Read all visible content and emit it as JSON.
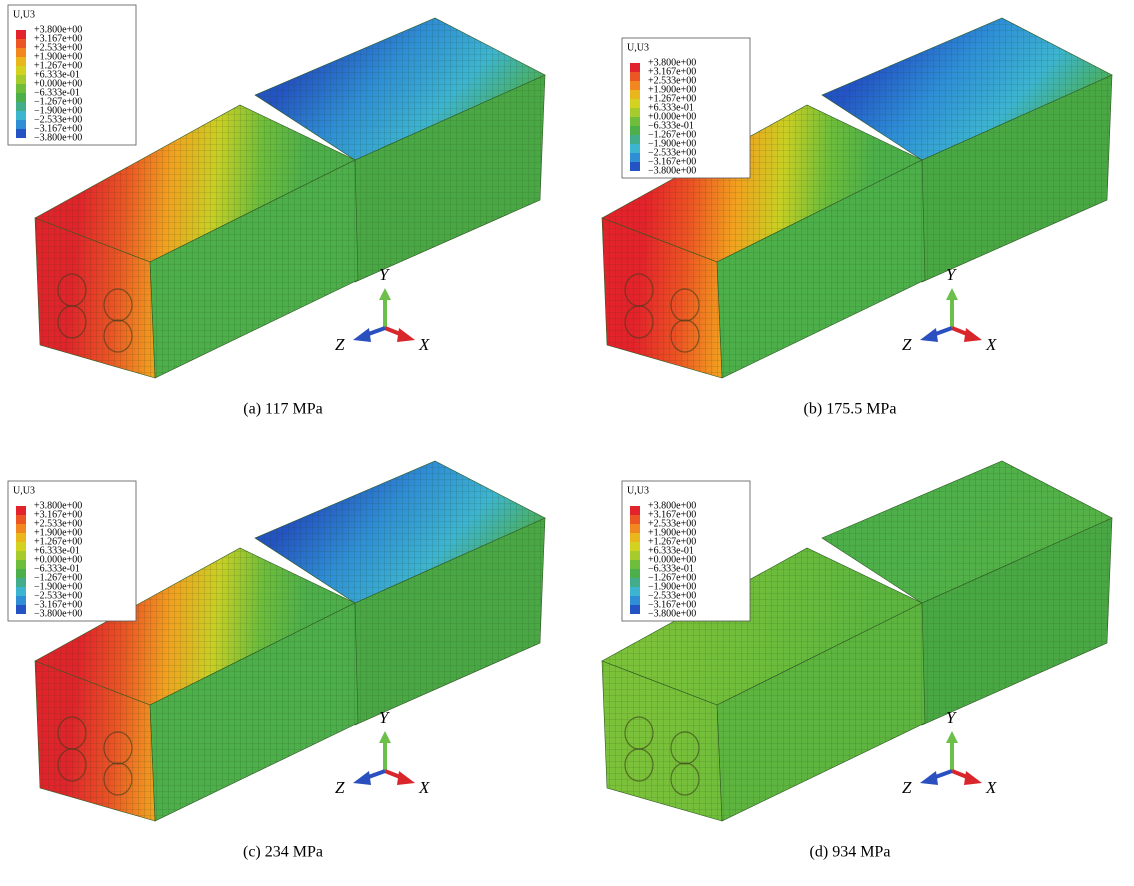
{
  "panels": [
    {
      "legend": {
        "title": "U,U3",
        "labels": [
          "+3.800e+00",
          "+3.167e+00",
          "+2.533e+00",
          "+1.900e+00",
          "+1.267e+00",
          "+6.333e-01",
          "+0.000e+00",
          "−6.333e-01",
          "−1.267e+00",
          "−1.900e+00",
          "−2.533e+00",
          "−3.167e+00",
          "−3.800e+00"
        ],
        "colors": [
          "#e3232b",
          "#ec5524",
          "#f2871f",
          "#e9b71b",
          "#d3d220",
          "#a6cb2d",
          "#6ebd3b",
          "#4daf4a",
          "#41ad8a",
          "#3db4d0",
          "#2f8fd6",
          "#2454c3"
        ]
      },
      "axes": {
        "y": "Y",
        "z": "Z",
        "x": "X"
      },
      "caption": "(a) 117 MPa",
      "left_top_colors": [
        "#e3232b",
        "#ec5524",
        "#f2a11f",
        "#c9cf24",
        "#6ebd3b",
        "#4daf4a"
      ],
      "right_top_colors": [
        "#2454c3",
        "#2f8fd6",
        "#3db4d0",
        "#4daf4a"
      ]
    },
    {
      "legend": {
        "title": "U,U3",
        "labels": [
          "+3.800e+00",
          "+3.167e+00",
          "+2.533e+00",
          "+1.900e+00",
          "+1.267e+00",
          "+6.333e-01",
          "+0.000e+00",
          "−6.333e-01",
          "−1.267e+00",
          "−1.900e+00",
          "−2.533e+00",
          "−3.167e+00",
          "−3.800e+00"
        ],
        "colors": [
          "#e3232b",
          "#ec5524",
          "#f2871f",
          "#e9b71b",
          "#d3d220",
          "#a6cb2d",
          "#6ebd3b",
          "#4daf4a",
          "#41ad8a",
          "#3db4d0",
          "#2f8fd6",
          "#2454c3"
        ]
      },
      "axes": {
        "y": "Y",
        "z": "Z",
        "x": "X"
      },
      "caption": "(b) 175.5 MPa",
      "left_top_colors": [
        "#e3232b",
        "#ec5524",
        "#f2a11f",
        "#c9cf24",
        "#6ebd3b",
        "#4daf4a"
      ],
      "right_top_colors": [
        "#2454c3",
        "#2f8fd6",
        "#3db4d0",
        "#4daf4a"
      ]
    },
    {
      "legend": {
        "title": "U,U3",
        "labels": [
          "+3.800e+00",
          "+3.167e+00",
          "+2.533e+00",
          "+1.900e+00",
          "+1.267e+00",
          "+6.333e-01",
          "+0.000e+00",
          "−6.333e-01",
          "−1.267e+00",
          "−1.900e+00",
          "−2.533e+00",
          "−3.167e+00",
          "−3.800e+00"
        ],
        "colors": [
          "#e3232b",
          "#ec5524",
          "#f2871f",
          "#e9b71b",
          "#d3d220",
          "#a6cb2d",
          "#6ebd3b",
          "#4daf4a",
          "#41ad8a",
          "#3db4d0",
          "#2f8fd6",
          "#2454c3"
        ]
      },
      "axes": {
        "y": "Y",
        "z": "Z",
        "x": "X"
      },
      "caption": "(c) 234 MPa",
      "left_top_colors": [
        "#e3232b",
        "#ec5524",
        "#f2a11f",
        "#c9cf24",
        "#6ebd3b",
        "#4daf4a"
      ],
      "right_top_colors": [
        "#2454c3",
        "#2f8fd6",
        "#3db4d0",
        "#4daf4a"
      ]
    },
    {
      "legend": {
        "title": "U,U3",
        "labels": [
          "+3.800e+00",
          "+3.167e+00",
          "+2.533e+00",
          "+1.900e+00",
          "+1.267e+00",
          "+6.333e-01",
          "+0.000e+00",
          "−6.333e-01",
          "−1.267e+00",
          "−1.900e+00",
          "−2.533e+00",
          "−3.167e+00",
          "−3.800e+00"
        ],
        "colors": [
          "#e3232b",
          "#ec5524",
          "#f2871f",
          "#e9b71b",
          "#d3d220",
          "#a6cb2d",
          "#6ebd3b",
          "#4daf4a",
          "#41ad8a",
          "#3db4d0",
          "#2f8fd6",
          "#2454c3"
        ]
      },
      "axes": {
        "y": "Y",
        "z": "Z",
        "x": "X"
      },
      "caption": "(d) 934 MPa",
      "left_top_colors": [
        "#7cc13a",
        "#6ebd3b",
        "#5db540"
      ],
      "right_top_colors": [
        "#4daf4a",
        "#55b247"
      ]
    }
  ]
}
